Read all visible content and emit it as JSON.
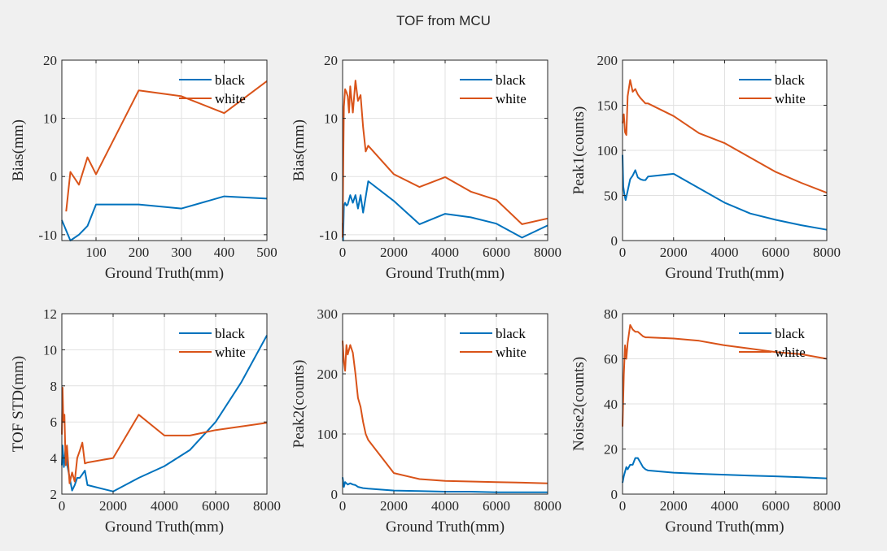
{
  "figure": {
    "title": "TOF from MCU"
  },
  "colors": {
    "black": "#0072BD",
    "white": "#D95319",
    "grid": "#e1e1e1",
    "axes": "#262626"
  },
  "chart_data": [
    {
      "type": "line",
      "xlabel": "Ground Truth(mm)",
      "ylabel": "Bias(mm)",
      "xlim": [
        20,
        500
      ],
      "ylim": [
        -11,
        20
      ],
      "xticks": [
        100,
        200,
        300,
        400,
        500
      ],
      "yticks": [
        -10,
        0,
        10,
        20
      ],
      "legend": "top-right",
      "series": [
        {
          "name": "black",
          "x": [
            20,
            40,
            60,
            80,
            100,
            200,
            300,
            400,
            500
          ],
          "y": [
            -7.5,
            -11,
            -10,
            -8.5,
            -4.8,
            -4.8,
            -5.5,
            -3.4,
            -3.8
          ]
        },
        {
          "name": "white",
          "x": [
            30,
            40,
            60,
            80,
            100,
            200,
            300,
            400,
            500
          ],
          "y": [
            -6,
            0.8,
            -1.4,
            3.3,
            0.4,
            14.8,
            13.8,
            10.9,
            16.4
          ]
        }
      ]
    },
    {
      "type": "line",
      "xlabel": "Ground Truth(mm)",
      "ylabel": "Bias(mm)",
      "xlim": [
        0,
        8000
      ],
      "ylim": [
        -11,
        20
      ],
      "xticks": [
        0,
        2000,
        4000,
        6000,
        8000
      ],
      "yticks": [
        -10,
        0,
        10,
        20
      ],
      "legend": "top-right",
      "series": [
        {
          "name": "black",
          "x": [
            0,
            20,
            50,
            100,
            150,
            200,
            300,
            400,
            500,
            600,
            700,
            800,
            900,
            1000,
            2000,
            3000,
            4000,
            5000,
            6000,
            7000,
            8000
          ],
          "y": [
            -8,
            -11,
            -5,
            -4.5,
            -5,
            -4.8,
            -3.2,
            -4.5,
            -3.2,
            -5.5,
            -3.2,
            -6.2,
            -3.5,
            -0.8,
            -4.2,
            -8.2,
            -6.4,
            -7,
            -8.1,
            -10.5,
            -8.4
          ]
        },
        {
          "name": "white",
          "x": [
            0,
            30,
            50,
            100,
            150,
            200,
            250,
            300,
            400,
            500,
            600,
            700,
            800,
            900,
            1000,
            2000,
            3000,
            4000,
            5000,
            6000,
            7000,
            8000
          ],
          "y": [
            -10.5,
            3,
            12,
            15,
            14.5,
            13.8,
            11,
            15.5,
            11,
            16.5,
            13,
            14,
            8.5,
            4.3,
            5.3,
            0.4,
            -1.8,
            -0.1,
            -2.6,
            -4,
            -8.2,
            -7.2
          ]
        }
      ]
    },
    {
      "type": "line",
      "xlabel": "Ground Truth(mm)",
      "ylabel": "Peak1(counts)",
      "xlim": [
        0,
        8000
      ],
      "ylim": [
        0,
        200
      ],
      "xticks": [
        0,
        2000,
        4000,
        6000,
        8000
      ],
      "yticks": [
        0,
        50,
        100,
        150,
        200
      ],
      "legend": "top-right",
      "series": [
        {
          "name": "black",
          "x": [
            0,
            30,
            80,
            120,
            200,
            300,
            400,
            500,
            600,
            700,
            800,
            900,
            1000,
            2000,
            3000,
            4000,
            5000,
            6000,
            7000,
            8000
          ],
          "y": [
            95,
            60,
            50,
            45,
            55,
            68,
            72,
            78,
            70,
            68,
            67,
            67,
            71,
            74,
            58,
            42,
            30,
            23,
            17,
            12
          ]
        },
        {
          "name": "white",
          "x": [
            0,
            50,
            100,
            150,
            200,
            300,
            400,
            500,
            600,
            700,
            800,
            900,
            1000,
            2000,
            3000,
            4000,
            5000,
            6000,
            7000,
            8000
          ],
          "y": [
            130,
            140,
            120,
            117,
            160,
            178,
            165,
            168,
            162,
            158,
            155,
            152,
            152,
            138,
            119,
            108,
            92,
            76,
            64,
            53
          ]
        }
      ]
    },
    {
      "type": "line",
      "xlabel": "Ground Truth(mm)",
      "ylabel": "TOF STD(mm)",
      "xlim": [
        0,
        8000
      ],
      "ylim": [
        2,
        12
      ],
      "xticks": [
        0,
        2000,
        4000,
        6000,
        8000
      ],
      "yticks": [
        2,
        4,
        6,
        8,
        10,
        12
      ],
      "legend": "top-right",
      "series": [
        {
          "name": "black",
          "x": [
            0,
            30,
            80,
            150,
            200,
            250,
            400,
            500,
            600,
            700,
            800,
            900,
            1000,
            2000,
            3000,
            4000,
            5000,
            6000,
            7000,
            8000
          ],
          "y": [
            3.6,
            4.7,
            3.5,
            4.6,
            3.7,
            3.3,
            2.2,
            2.5,
            2.9,
            2.9,
            3.1,
            3.3,
            2.5,
            2.15,
            2.9,
            3.55,
            4.45,
            6,
            8.2,
            10.8
          ]
        },
        {
          "name": "white",
          "x": [
            0,
            30,
            60,
            100,
            150,
            200,
            300,
            400,
            500,
            600,
            700,
            800,
            900,
            1000,
            2000,
            3000,
            4000,
            5000,
            6000,
            7000,
            8000
          ],
          "y": [
            5.3,
            7.9,
            6,
            6.4,
            3.6,
            4.7,
            2.6,
            3.2,
            2.7,
            4,
            4.4,
            4.85,
            3.7,
            3.75,
            4,
            6.4,
            5.25,
            5.25,
            5.55,
            5.75,
            5.95
          ]
        }
      ]
    },
    {
      "type": "line",
      "xlabel": "Ground Truth(mm)",
      "ylabel": "Peak2(counts)",
      "xlim": [
        0,
        8000
      ],
      "ylim": [
        0,
        300
      ],
      "xticks": [
        0,
        2000,
        4000,
        6000,
        8000
      ],
      "yticks": [
        0,
        100,
        200,
        300
      ],
      "legend": "top-right",
      "series": [
        {
          "name": "black",
          "x": [
            0,
            50,
            100,
            200,
            300,
            400,
            500,
            600,
            700,
            800,
            1000,
            2000,
            3000,
            4000,
            5000,
            6000,
            7000,
            8000
          ],
          "y": [
            28,
            12,
            20,
            16,
            18,
            16,
            15,
            12,
            11,
            10,
            9,
            6,
            5,
            4,
            4,
            3,
            3,
            3
          ]
        },
        {
          "name": "white",
          "x": [
            0,
            50,
            100,
            150,
            200,
            300,
            400,
            500,
            600,
            700,
            800,
            900,
            1000,
            2000,
            3000,
            4000,
            5000,
            6000,
            7000,
            8000
          ],
          "y": [
            255,
            220,
            205,
            248,
            232,
            248,
            235,
            200,
            160,
            145,
            120,
            100,
            90,
            35,
            25,
            22,
            21,
            20,
            19,
            18
          ]
        }
      ]
    },
    {
      "type": "line",
      "xlabel": "Ground Truth(mm)",
      "ylabel": "Noise2(counts)",
      "xlim": [
        0,
        8000
      ],
      "ylim": [
        0,
        80
      ],
      "xticks": [
        0,
        2000,
        4000,
        6000,
        8000
      ],
      "yticks": [
        0,
        20,
        40,
        60,
        80
      ],
      "legend": "top-right",
      "series": [
        {
          "name": "black",
          "x": [
            0,
            50,
            100,
            150,
            200,
            300,
            400,
            500,
            600,
            700,
            800,
            900,
            1000,
            2000,
            3000,
            4000,
            5000,
            6000,
            7000,
            8000
          ],
          "y": [
            5,
            8,
            10,
            12,
            11,
            13,
            13,
            16,
            16,
            14,
            12,
            11,
            10.5,
            9.5,
            9,
            8.6,
            8.2,
            7.9,
            7.5,
            7
          ]
        },
        {
          "name": "white",
          "x": [
            0,
            50,
            100,
            150,
            200,
            300,
            400,
            500,
            600,
            700,
            800,
            900,
            1000,
            2000,
            3000,
            4000,
            5000,
            6000,
            7000,
            8000
          ],
          "y": [
            30,
            53,
            66,
            60,
            67,
            75,
            73,
            72,
            72,
            71,
            70,
            69.5,
            69.5,
            69,
            68,
            66,
            64.5,
            63,
            62,
            60
          ]
        }
      ]
    }
  ]
}
